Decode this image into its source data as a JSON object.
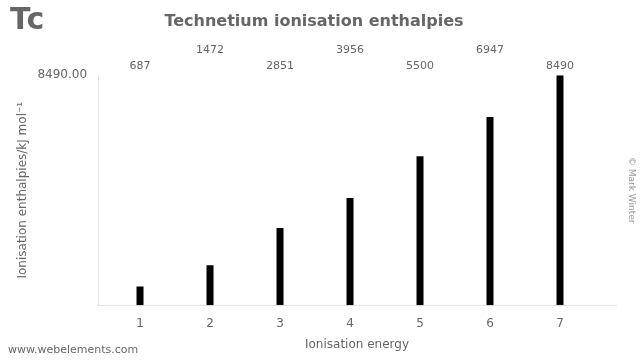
{
  "chart_data": {
    "type": "bar",
    "title": "Technetium ionisation enthalpies",
    "xlabel": "Ionisation energy",
    "ylabel": "Ionisation enthalpies/kJ mol⁻¹",
    "x": [
      1,
      2,
      3,
      4,
      5,
      6,
      7
    ],
    "values": [
      687,
      1472,
      2851,
      3956,
      5500,
      6947,
      8490
    ],
    "color": "#000000",
    "xlim": [
      0.4,
      7.8
    ],
    "xticks": [
      1,
      2,
      3,
      4,
      5,
      6,
      7
    ],
    "ylim": [
      0,
      8490
    ],
    "yticks": [
      {
        "value": 8490,
        "label": "8490.00"
      }
    ],
    "grid": false,
    "legend": false,
    "data_labels": true,
    "annotations": [
      "Tc",
      "© Mark Winter",
      "www.webelements.com"
    ]
  }
}
